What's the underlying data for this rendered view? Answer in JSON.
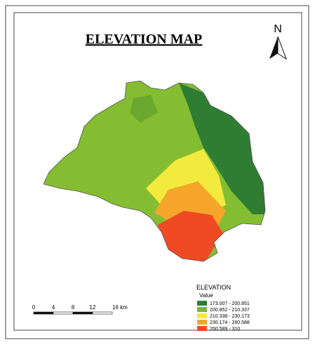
{
  "title": "ELEVATION MAP",
  "north": "N",
  "legend": {
    "title": "ELEVATION",
    "subtitle": "Value",
    "items": [
      {
        "label": "173.007 - 200.851",
        "color": "#2f7d32"
      },
      {
        "label": "200.852 - 210.337",
        "color": "#7cb82f"
      },
      {
        "label": "210.338 - 230.173",
        "color": "#f2ea3c"
      },
      {
        "label": "230.174 - 260.588",
        "color": "#f5a62a"
      },
      {
        "label": "260.589 - 310",
        "color": "#ef4a24"
      }
    ]
  },
  "scale_bar": {
    "labels": [
      "0",
      "4",
      "8",
      "12",
      "16 km"
    ]
  }
}
